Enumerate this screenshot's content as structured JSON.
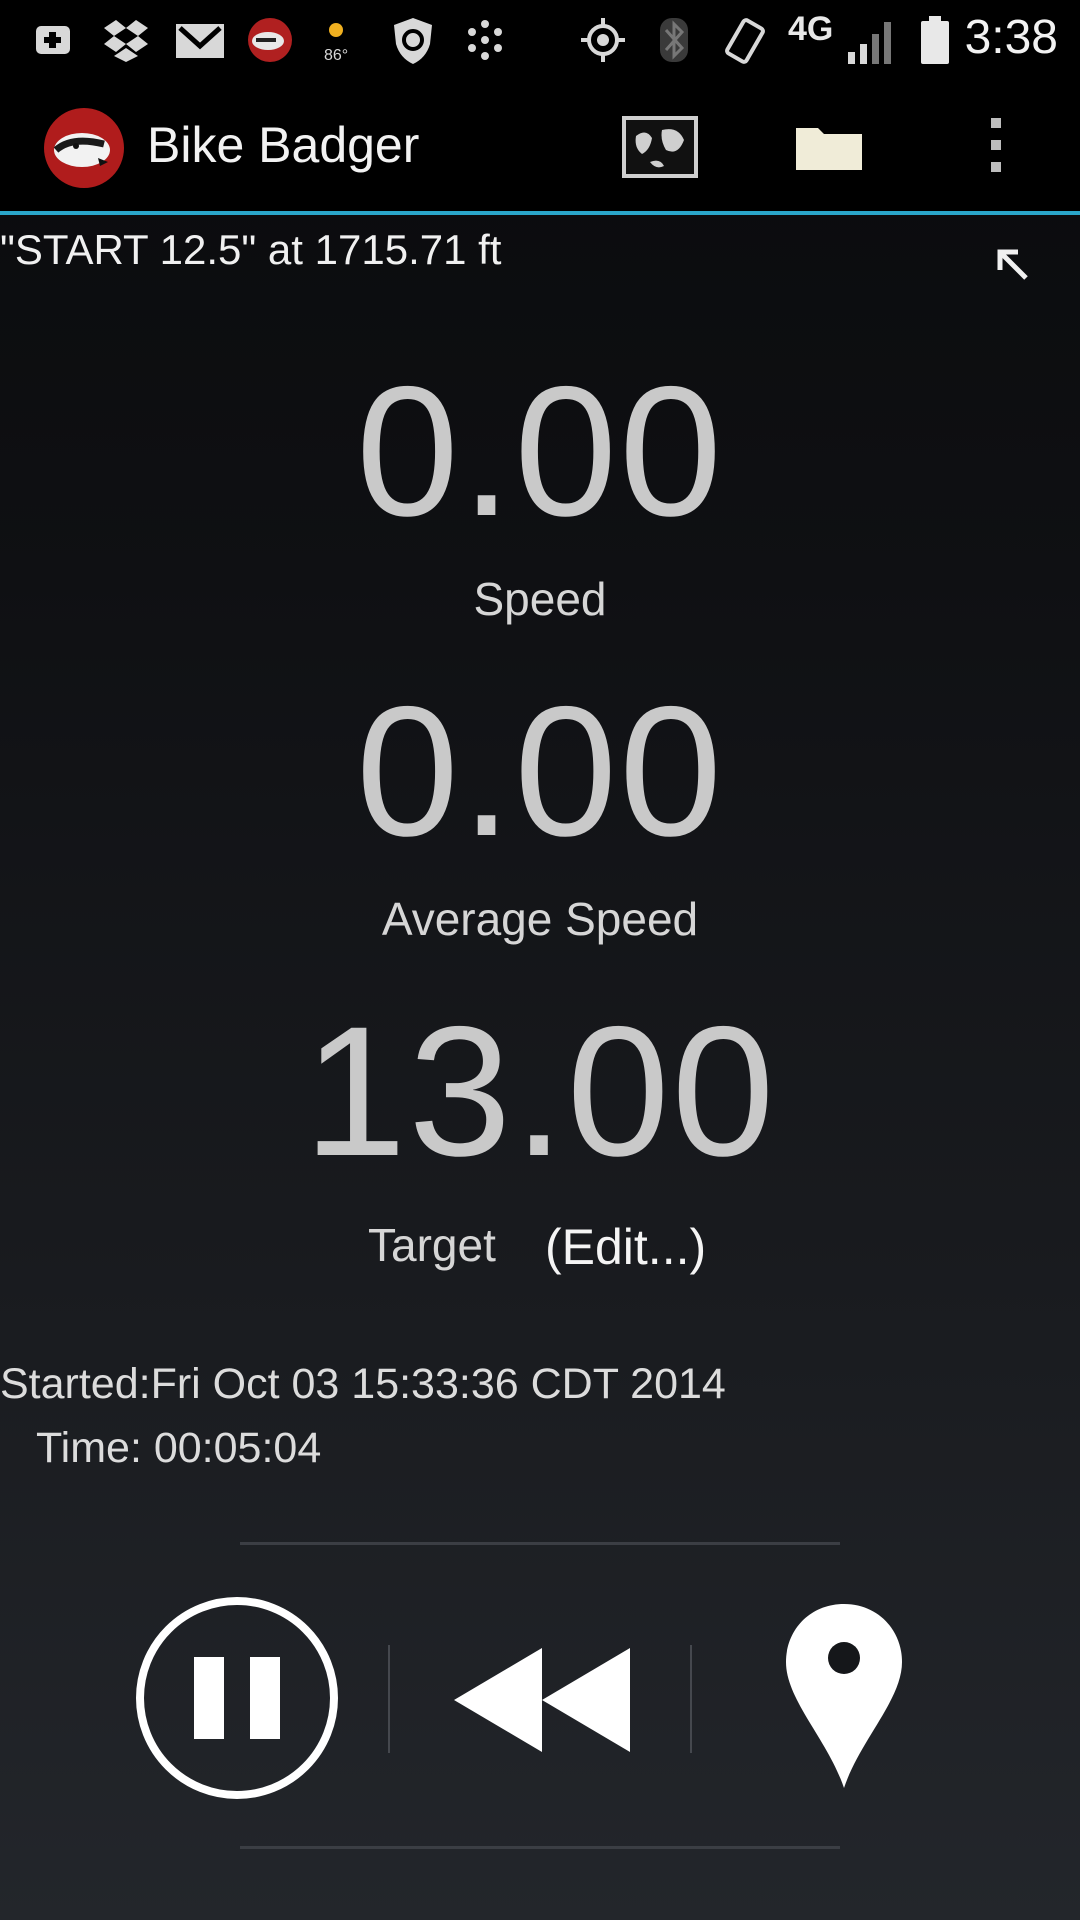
{
  "status_bar": {
    "time": "3:38",
    "network_label": "4G",
    "weather_temp": "86°",
    "icons": [
      "plus-notification-icon",
      "dropbox-icon",
      "gmail-icon",
      "bike-badger-notification-icon",
      "weather-icon",
      "shield-icon",
      "dots-icon",
      "gps-icon",
      "bluetooth-icon",
      "rotate-icon",
      "lte-signal-icon",
      "battery-icon"
    ]
  },
  "action_bar": {
    "app_title": "Bike Badger",
    "logo_icon": "badger-logo-icon",
    "actions": [
      "map-icon",
      "folder-icon",
      "overflow-menu-icon"
    ]
  },
  "location": {
    "text": "\"START 12.5\" at 1715.71 ft",
    "direction_icon": "arrow-up-left-icon"
  },
  "metrics": {
    "speed_value": "0.00",
    "speed_label": "Speed",
    "avg_speed_value": "0.00",
    "avg_speed_label": "Average Speed",
    "target_value": "13.00",
    "target_label": "Target",
    "edit_label": "(Edit...)"
  },
  "session": {
    "started": "Started:Fri Oct 03 15:33:36 CDT 2014",
    "time": "Time: 00:05:04"
  },
  "controls": [
    "pause-icon",
    "rewind-icon",
    "location-pin-icon"
  ],
  "colors": {
    "accent": "#2aa6c9",
    "metric_text": "#c9c9c9",
    "background_top": "#090a0c",
    "background_bottom": "#23262b"
  }
}
